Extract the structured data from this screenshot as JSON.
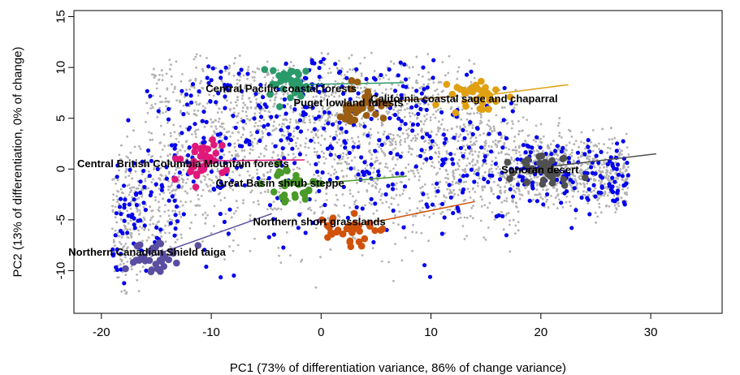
{
  "chart_data": {
    "type": "scatter",
    "title": "",
    "xlabel": "PC1 (73% of differentiation variance, 86% of change variance)",
    "ylabel": "PC2 (13% of differentiation, 0% of change)",
    "xlim": [
      -22.5,
      36.5
    ],
    "ylim": [
      -14.2,
      15.6
    ],
    "x_ticks": [
      -20,
      -10,
      0,
      10,
      20,
      30
    ],
    "y_ticks": [
      -10,
      -5,
      0,
      5,
      10,
      15
    ],
    "x_tick_labels": [
      "-20",
      "-10",
      "0",
      "10",
      "20",
      "30"
    ],
    "y_tick_labels": [
      "-10",
      "-5",
      "0",
      "5",
      "10",
      "15"
    ],
    "grid": false,
    "background_points": {
      "color": "#b3b3b3",
      "description": "dense cloud of gray points",
      "approx_extent_x": [
        -19,
        28
      ],
      "approx_extent_y": [
        -12,
        11
      ]
    },
    "highlight_points": {
      "color": "#0000ee",
      "approx_extent_x": [
        -19,
        26
      ],
      "approx_extent_y": [
        -11,
        11
      ]
    },
    "ecoregions": [
      {
        "name": "Central Pacific coastal forests",
        "color": "#2a9a6a",
        "center": [
          -2.7,
          8.3
        ],
        "arrow_to": [
          7.5,
          8.5
        ],
        "label_pos": [
          -10.5,
          7.9
        ]
      },
      {
        "name": "Puget lowland forests",
        "color": "#9a5d12",
        "center": [
          3.4,
          6.4
        ],
        "arrow_to": [
          12.5,
          7.2
        ],
        "label_pos": [
          -2.5,
          6.5
        ]
      },
      {
        "name": "California coastal sage and chaparral",
        "color": "#e0a010",
        "center": [
          14.5,
          7.2
        ],
        "arrow_to": [
          22.5,
          8.3
        ],
        "label_pos": [
          4.5,
          6.9
        ]
      },
      {
        "name": "Central British Columbia Mountain forests",
        "color": "#e0187a",
        "center": [
          -11.5,
          0.8
        ],
        "arrow_to": [
          -1.5,
          0.9
        ],
        "label_pos": [
          -22.2,
          0.5
        ]
      },
      {
        "name": "Great Basin shrub steppe",
        "color": "#4a9a2a",
        "center": [
          -2.5,
          -1.6
        ],
        "arrow_to": [
          7.8,
          -0.7
        ],
        "label_pos": [
          -9.6,
          -1.4
        ]
      },
      {
        "name": "Sonoran desert",
        "color": "#505050",
        "center": [
          20.5,
          0.2
        ],
        "arrow_to": [
          30.5,
          1.5
        ],
        "label_pos": [
          16.4,
          -0.1
        ]
      },
      {
        "name": "Northern short grasslands",
        "color": "#d0520a",
        "center": [
          2.2,
          -5.8
        ],
        "arrow_to": [
          14.0,
          -3.2
        ],
        "label_pos": [
          -6.2,
          -5.2
        ]
      },
      {
        "name": "Northern Canadian Shield taiga",
        "color": "#5a4ea0",
        "center": [
          -15.5,
          -8.6
        ],
        "arrow_to": [
          -4.5,
          -4.4
        ],
        "label_pos": [
          -23.0,
          -8.2
        ]
      }
    ]
  }
}
